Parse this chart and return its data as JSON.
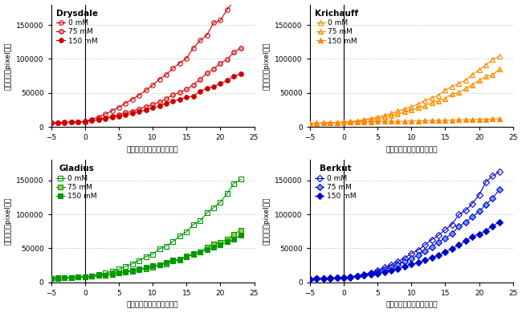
{
  "panels": [
    {
      "title": "Drysdale",
      "legend_labels": [
        "0 mM",
        "75 mM",
        "150 mM"
      ],
      "edge_colors": [
        "#cc0000",
        "#cc0000",
        "#cc0000"
      ],
      "face_colors": [
        "none",
        "#ff9999",
        "#cc0000"
      ],
      "line_colors": [
        "#cc0000",
        "#cc0000",
        "#cc0000"
      ],
      "marker": "o"
    },
    {
      "title": "Krichauff",
      "legend_labels": [
        "0 mM",
        "75 mM",
        "150 mM"
      ],
      "edge_colors": [
        "#ff8800",
        "#ff8800",
        "#ff8800"
      ],
      "face_colors": [
        "none",
        "#ffcc44",
        "#ff8800"
      ],
      "line_colors": [
        "#ff8800",
        "#ff8800",
        "#ff8800"
      ],
      "marker": "^"
    },
    {
      "title": "Gladius",
      "legend_labels": [
        "0 mM",
        "75 mM",
        "150 mM"
      ],
      "edge_colors": [
        "#009900",
        "#009900",
        "#009900"
      ],
      "face_colors": [
        "none",
        "#99cc44",
        "#009900"
      ],
      "line_colors": [
        "#009900",
        "#009900",
        "#009900"
      ],
      "marker": "s"
    },
    {
      "title": "Berkut",
      "legend_labels": [
        "0 mM",
        "75 mM",
        "150 mM"
      ],
      "edge_colors": [
        "#0000cc",
        "#0000cc",
        "#0000cc"
      ],
      "face_colors": [
        "none",
        "#6699ff",
        "#0000cc"
      ],
      "line_colors": [
        "#0000cc",
        "#0000cc",
        "#0000cc"
      ],
      "marker": "D"
    }
  ],
  "xlim": [
    -5,
    25
  ],
  "ylim": [
    0,
    180000
  ],
  "yticks": [
    0,
    50000,
    100000,
    150000
  ],
  "xticks": [
    -5,
    0,
    5,
    10,
    15,
    20,
    25
  ],
  "xlabel": "塩処理後の生育日数（日）",
  "ylabel": "総葉面積（pixel値）",
  "background_color": "#ffffff",
  "grid_color": "#cccccc"
}
